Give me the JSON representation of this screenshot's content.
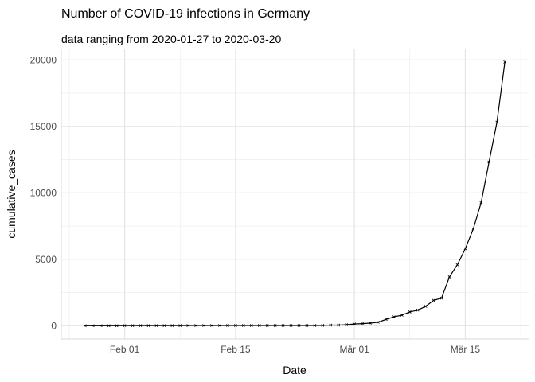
{
  "chart_data": {
    "type": "line",
    "title": "Number of COVID-19 infections in Germany",
    "subtitle": "data ranging from 2020-01-27 to 2020-03-20",
    "xlabel": "Date",
    "ylabel": "cumulative_cases",
    "x_type": "date",
    "xlim": [
      "2020-01-24",
      "2020-03-23"
    ],
    "ylim": [
      -1000,
      20800
    ],
    "x_ticks": [
      {
        "date": "2020-02-01",
        "label": "Feb 01"
      },
      {
        "date": "2020-02-15",
        "label": "Feb 15"
      },
      {
        "date": "2020-03-01",
        "label": "Mär 01"
      },
      {
        "date": "2020-03-15",
        "label": "Mär 15"
      }
    ],
    "y_ticks": [
      0,
      5000,
      10000,
      15000,
      20000
    ],
    "grid": true,
    "series": [
      {
        "color": "#000000",
        "marker": "x",
        "x": [
          "2020-01-27",
          "2020-01-28",
          "2020-01-29",
          "2020-01-30",
          "2020-01-31",
          "2020-02-01",
          "2020-02-02",
          "2020-02-03",
          "2020-02-04",
          "2020-02-05",
          "2020-02-06",
          "2020-02-07",
          "2020-02-08",
          "2020-02-09",
          "2020-02-10",
          "2020-02-11",
          "2020-02-12",
          "2020-02-13",
          "2020-02-14",
          "2020-02-15",
          "2020-02-16",
          "2020-02-17",
          "2020-02-18",
          "2020-02-19",
          "2020-02-20",
          "2020-02-21",
          "2020-02-22",
          "2020-02-23",
          "2020-02-24",
          "2020-02-25",
          "2020-02-26",
          "2020-02-27",
          "2020-02-28",
          "2020-02-29",
          "2020-03-01",
          "2020-03-02",
          "2020-03-03",
          "2020-03-04",
          "2020-03-05",
          "2020-03-06",
          "2020-03-07",
          "2020-03-08",
          "2020-03-09",
          "2020-03-10",
          "2020-03-11",
          "2020-03-12",
          "2020-03-13",
          "2020-03-14",
          "2020-03-15",
          "2020-03-16",
          "2020-03-17",
          "2020-03-18",
          "2020-03-19",
          "2020-03-20"
        ],
        "values": [
          1,
          4,
          4,
          4,
          5,
          8,
          10,
          12,
          12,
          12,
          12,
          13,
          13,
          14,
          14,
          16,
          16,
          16,
          16,
          16,
          16,
          16,
          16,
          16,
          16,
          16,
          16,
          16,
          16,
          17,
          27,
          46,
          48,
          79,
          130,
          159,
          196,
          262,
          482,
          670,
          799,
          1040,
          1176,
          1457,
          1908,
          2078,
          3675,
          4585,
          5795,
          7272,
          9257,
          12327,
          15320,
          19848
        ]
      }
    ]
  }
}
